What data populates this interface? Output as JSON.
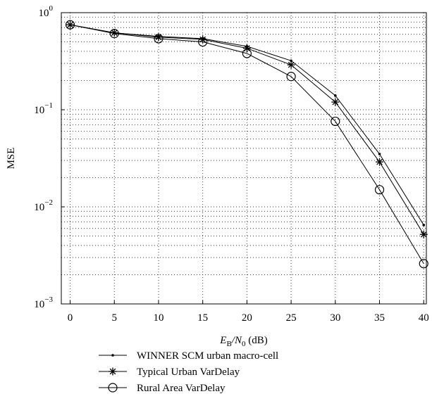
{
  "chart_data": {
    "type": "line",
    "xlabel": {
      "main": "E",
      "sub_b": "B",
      "slash": "/N",
      "sub_0": "0",
      "unit": " (dB)"
    },
    "ylabel": "MSE",
    "x": [
      0,
      5,
      10,
      15,
      20,
      25,
      30,
      35,
      40
    ],
    "xlim": [
      -1,
      40.3
    ],
    "ylim": [
      0.001,
      1
    ],
    "yscale": "log",
    "grid": true,
    "x_ticks": [
      "0",
      "5",
      "10",
      "15",
      "20",
      "25",
      "30",
      "35",
      "40"
    ],
    "y_ticks": [
      {
        "base": "10",
        "exp": "0",
        "value": 1
      },
      {
        "base": "10",
        "exp": "−1",
        "value": 0.1
      },
      {
        "base": "10",
        "exp": "−2",
        "value": 0.01
      },
      {
        "base": "10",
        "exp": "−3",
        "value": 0.001
      }
    ],
    "legend_position": "below",
    "series": [
      {
        "name": "WINNER SCM urban macro-cell",
        "marker": "dot",
        "values": [
          0.75,
          0.62,
          0.57,
          0.54,
          0.45,
          0.32,
          0.14,
          0.035,
          0.0065
        ]
      },
      {
        "name": "Typical Urban VarDelay",
        "marker": "star",
        "values": [
          0.75,
          0.62,
          0.56,
          0.53,
          0.43,
          0.29,
          0.12,
          0.029,
          0.0052
        ]
      },
      {
        "name": "Rural Area VarDelay",
        "marker": "circle",
        "values": [
          0.75,
          0.61,
          0.54,
          0.5,
          0.38,
          0.22,
          0.076,
          0.015,
          0.0026
        ]
      }
    ]
  }
}
